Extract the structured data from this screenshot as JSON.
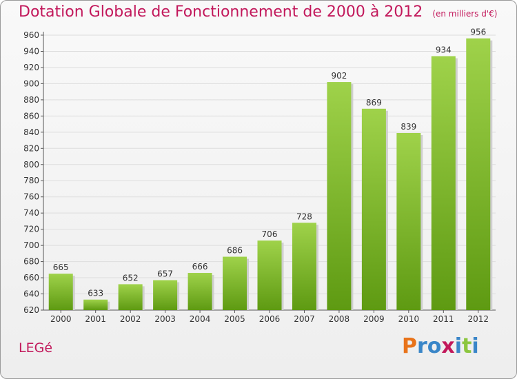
{
  "title": "Dotation Globale de Fonctionnement de 2000 à 2012",
  "unit_note": "(en milliers d'€)",
  "commune": "LEGé",
  "logo": {
    "letters": [
      "P",
      "r",
      "o",
      "x",
      "i",
      "t",
      "i"
    ],
    "colors": [
      "#e8731a",
      "#3a86c8",
      "#3a86c8",
      "#c2185b",
      "#3a86c8",
      "#8cc63f",
      "#3a86c8"
    ]
  },
  "colors": {
    "bar_top": "#9fd24a",
    "bar_bottom": "#5e9a12",
    "title": "#c2185b",
    "grid": "#dddddd"
  },
  "chart_data": {
    "type": "bar",
    "title": "Dotation Globale de Fonctionnement de 2000 à 2012",
    "categories": [
      "2000",
      "2001",
      "2002",
      "2003",
      "2004",
      "2005",
      "2006",
      "2007",
      "2008",
      "2009",
      "2010",
      "2011",
      "2012"
    ],
    "values": [
      665,
      633,
      652,
      657,
      666,
      686,
      706,
      728,
      902,
      869,
      839,
      934,
      956
    ],
    "yticks": [
      620,
      640,
      660,
      680,
      700,
      720,
      740,
      760,
      780,
      800,
      820,
      840,
      860,
      880,
      900,
      920,
      940,
      960
    ],
    "ylim": [
      620,
      960
    ],
    "xlabel": "",
    "ylabel": "",
    "grid": true,
    "data_labels": true
  }
}
